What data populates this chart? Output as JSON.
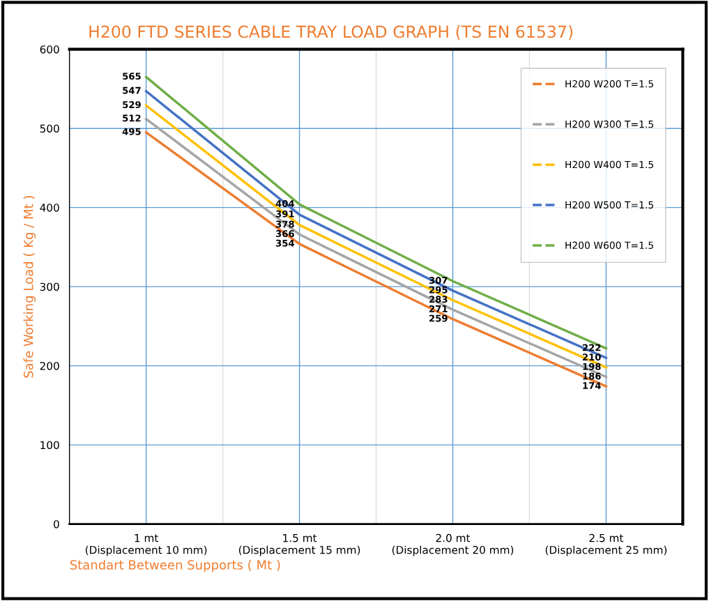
{
  "chart_data": {
    "type": "line",
    "title": "H200 FTD SERIES CABLE TRAY LOAD GRAPH (TS EN 61537)",
    "xlabel": "Standart Between Supports ( Mt )",
    "ylabel": "Safe Working Load ( Kg / Mt )",
    "categories": [
      "1 mt\n(Displacement 10 mm)",
      "1.5 mt\n(Displacement 15 mm)",
      "2.0 mt\n(Displacement 20 mm)",
      "2.5 mt\n(Displacement 25 mm)"
    ],
    "series": [
      {
        "name": "H200 W200 T=1.5",
        "color": "#ed7d31",
        "values": [
          495,
          354,
          259,
          174
        ]
      },
      {
        "name": "H200 W300 T=1.5",
        "color": "#a5a5a5",
        "values": [
          512,
          366,
          271,
          186
        ]
      },
      {
        "name": "H200 W400 T=1.5",
        "color": "#ffc000",
        "values": [
          529,
          378,
          283,
          198
        ]
      },
      {
        "name": "H200 W500 T=1.5",
        "color": "#4472c4",
        "values": [
          547,
          391,
          295,
          210
        ]
      },
      {
        "name": "H200 W600 T=1.5",
        "color": "#70ad47",
        "values": [
          565,
          404,
          307,
          222
        ]
      }
    ],
    "ylim": [
      0,
      600
    ],
    "yticks": [
      0,
      100,
      200,
      300,
      400,
      500,
      600
    ],
    "grid": true,
    "legend": "top right",
    "line_style": "solid",
    "data_labels": true
  }
}
